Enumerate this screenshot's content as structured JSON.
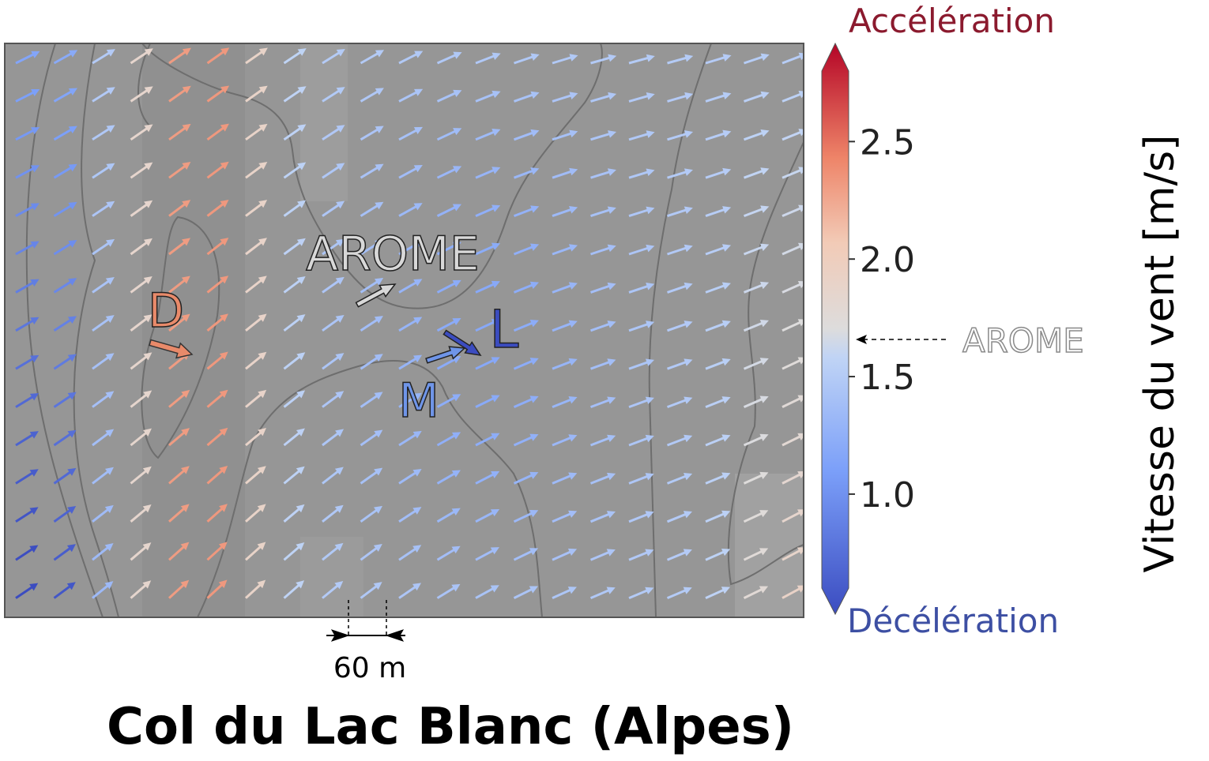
{
  "chart_data": {
    "type": "quiver",
    "title": "Col du Lac Blanc (Alpes)",
    "colorbar": {
      "label": "Vitesse du vent [m/s]",
      "ticks": [
        "1.0",
        "1.5",
        "2.0",
        "2.5"
      ],
      "tick_values": [
        1.0,
        1.5,
        2.0,
        2.5
      ],
      "range": [
        0.6,
        2.8
      ],
      "top_label": "Accélération",
      "bottom_label": "Décélération",
      "top_color": "#8b1a2e",
      "bottom_color": "#3d4fa3",
      "reference_label": "AROME",
      "reference_value": 1.42
    },
    "scale_bar": {
      "label": "60 m"
    },
    "annotations": [
      {
        "label": "AROME",
        "value": 1.42,
        "color": "#d8d8d8"
      },
      {
        "label": "D",
        "value": 2.3,
        "color": "#e88a6a"
      },
      {
        "label": "L",
        "value": 0.68,
        "color": "#3b4cc0"
      },
      {
        "label": "M",
        "value": 0.95,
        "color": "#6f95e8"
      }
    ],
    "background_color": "#969696"
  }
}
